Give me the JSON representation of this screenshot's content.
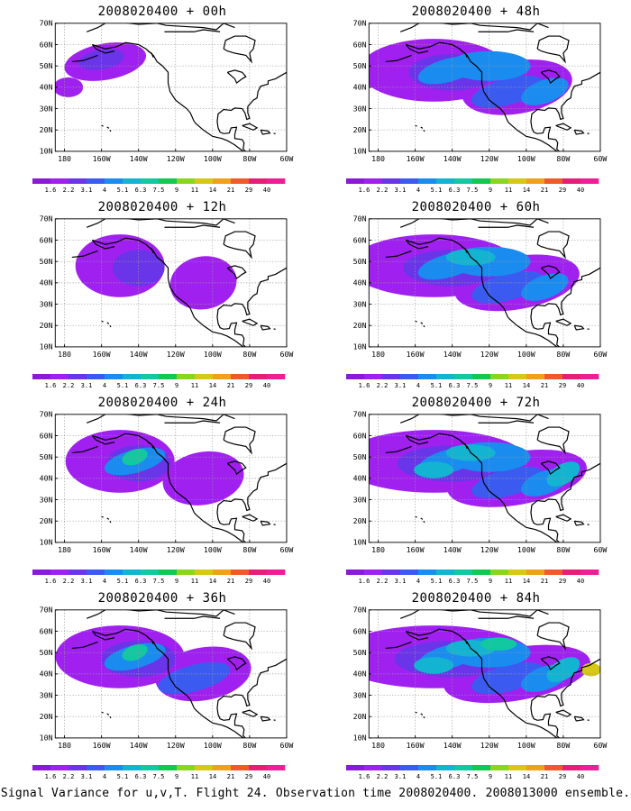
{
  "panels": [
    {
      "title": "2008020400 + 00h",
      "level": 0
    },
    {
      "title": "2008020400 + 48h",
      "level": 4
    },
    {
      "title": "2008020400 + 12h",
      "level": 1
    },
    {
      "title": "2008020400 + 60h",
      "level": 5
    },
    {
      "title": "2008020400 + 24h",
      "level": 2
    },
    {
      "title": "2008020400 + 72h",
      "level": 6
    },
    {
      "title": "2008020400 + 36h",
      "level": 3
    },
    {
      "title": "2008020400 + 84h",
      "level": 7
    }
  ],
  "axes": {
    "lat_labels": [
      "70N",
      "60N",
      "50N",
      "40N",
      "30N",
      "20N",
      "10N"
    ],
    "lat_values": [
      70,
      60,
      50,
      40,
      30,
      20,
      10
    ],
    "lon_labels": [
      "180",
      "160W",
      "140W",
      "120W",
      "100W",
      "80W",
      "60W"
    ],
    "lon_values": [
      -180,
      -160,
      -140,
      -120,
      -100,
      -80,
      -60
    ]
  },
  "colorbar": {
    "labels": [
      "1.6",
      "2.2",
      "3.1",
      "4",
      "5.1",
      "6.3",
      "7.5",
      "9",
      "11",
      "14",
      "21",
      "29",
      "40"
    ],
    "colors": [
      "#8a1ad6",
      "#a020f0",
      "#6a35e8",
      "#3b5bf0",
      "#1a8cf0",
      "#12b4d2",
      "#11c8a0",
      "#12c850",
      "#8ad61e",
      "#d6c814",
      "#f0a01a",
      "#f05a2a",
      "#e61e78",
      "#f01e96"
    ]
  },
  "footer": "Signal Variance for u,v,T. Flight 24. Observation time 2008020400. 2008013000 ensemble."
}
